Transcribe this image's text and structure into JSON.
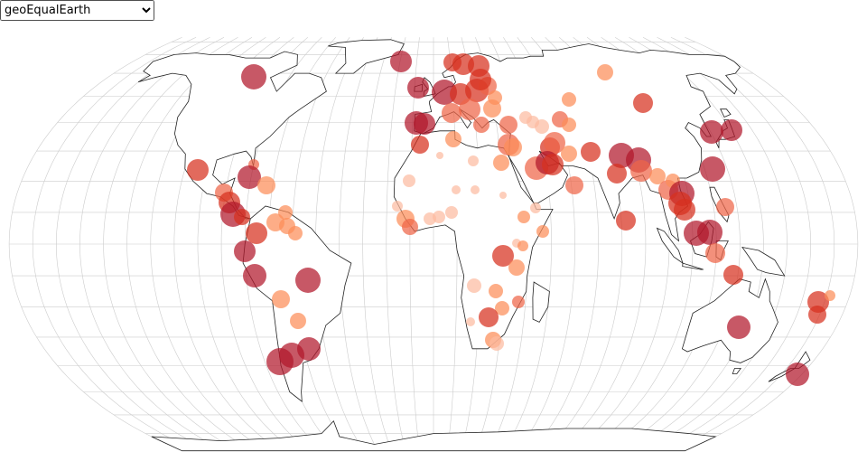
{
  "projection_selector": {
    "selected": "geoEqualEarth"
  }
}
